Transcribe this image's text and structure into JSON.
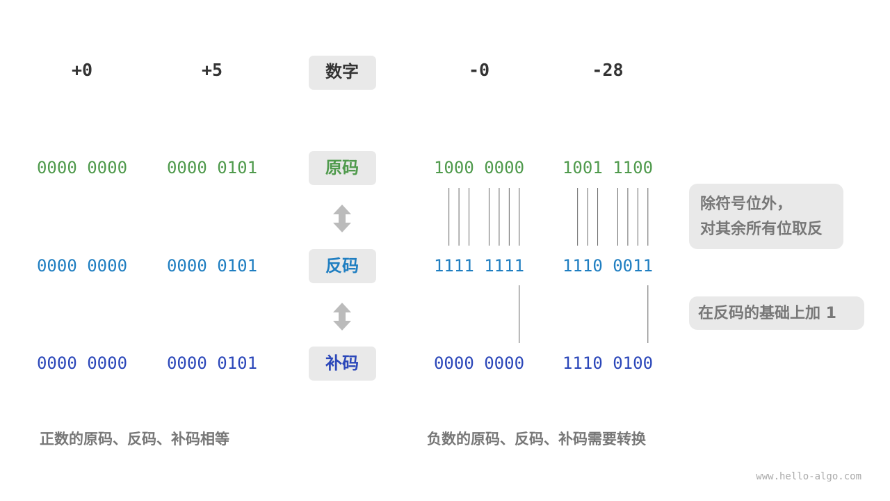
{
  "columns": [
    {
      "header": "+0",
      "sign_magnitude": "0000 0000",
      "ones_complement": "0000 0000",
      "twos_complement": "0000 0000"
    },
    {
      "header": "+5",
      "sign_magnitude": "0000 0101",
      "ones_complement": "0000 0101",
      "twos_complement": "0000 0101"
    },
    {
      "header": "-0",
      "sign_magnitude": "1000 0000",
      "ones_complement": "1111 1111",
      "twos_complement": "0000 0000"
    },
    {
      "header": "-28",
      "sign_magnitude": "1001 1100",
      "ones_complement": "1110 0011",
      "twos_complement": "1110 0100"
    }
  ],
  "row_labels": {
    "number": "数字",
    "sign_magnitude": "原码",
    "ones_complement": "反码",
    "twos_complement": "补码"
  },
  "notes": {
    "invert": [
      "除符号位外，",
      "对其余所有位取反"
    ],
    "add_one": "在反码的基础上加 1"
  },
  "captions": {
    "positive": "正数的原码、反码、补码相等",
    "negative": "负数的原码、反码、补码需要转换"
  },
  "watermark": "www.hello-algo.com"
}
